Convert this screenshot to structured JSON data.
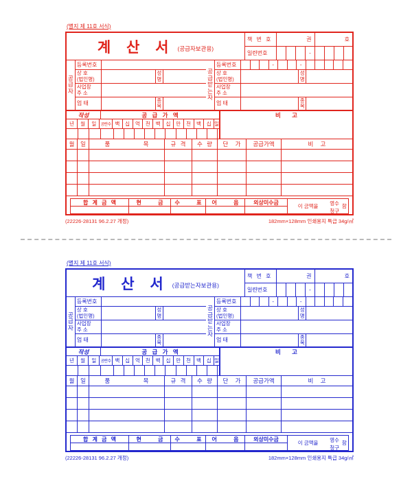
{
  "colors": {
    "supplier_ink": "#e0241c",
    "recipient_ink": "#2227cd",
    "divider": "#b9b9b9"
  },
  "labels": {
    "sheet_note": "(별지 제 11호 서식)",
    "title": "계 산 서",
    "book_no": "책 번 호",
    "kwon": "권",
    "ho": "호",
    "serial_no": "일련번호",
    "dash": "-",
    "reg_no": "등록번호",
    "trade_name": "상 호\n(법인명)",
    "name": "성명",
    "address": "사업장\n주 소",
    "biz_type": "업 태",
    "item_cat": "종목",
    "compose": "작성",
    "supply_value": "공 급 가 액",
    "remarks": "비 고",
    "party_supplier": "공급자",
    "party_recipient": "공급받는자",
    "digit_heads": [
      "년",
      "월",
      "일",
      "공란수",
      "백",
      "십",
      "억",
      "천",
      "백",
      "십",
      "만",
      "천",
      "백",
      "십",
      "일"
    ],
    "table_heads": [
      "월",
      "일",
      "품 목",
      "규 격",
      "수 량",
      "단 가",
      "공급가액",
      "비 고"
    ],
    "sum_total": "합 계 금 액",
    "cash": "현 금",
    "check": "수 표",
    "note": "어 음",
    "credit": "외상미수금",
    "amount_prefix": "이 금액을",
    "receipt": "영수",
    "claim": "청구",
    "amount_suffix": "함",
    "footer_left": "(22226-28131 96.2.27 개정)",
    "footer_right": "182mm×128mm 인쇄용지 특급 34g/㎡"
  },
  "supplier_form": {
    "subtitle": "(공급자보관용)"
  },
  "recipient_form": {
    "subtitle": "(공급받는자보관용)"
  }
}
